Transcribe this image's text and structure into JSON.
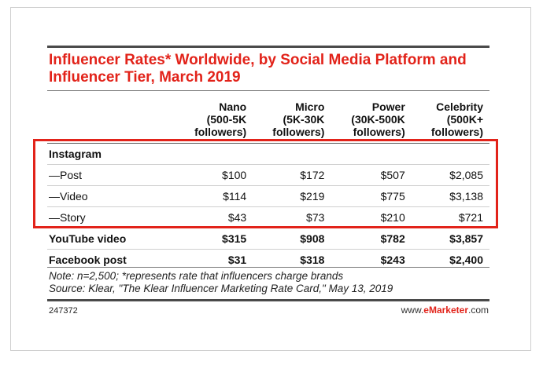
{
  "chart_data": {
    "type": "table",
    "title": "Influencer Rates* Worldwide, by Social Media Platform and Influencer Tier, March 2019",
    "columns": [
      {
        "name": "Nano",
        "sub1": "(500-5K",
        "sub2": "followers)"
      },
      {
        "name": "Micro",
        "sub1": "(5K-30K",
        "sub2": "followers)"
      },
      {
        "name": "Power",
        "sub1": "(30K-500K",
        "sub2": "followers)"
      },
      {
        "name": "Celebrity",
        "sub1": "(500K+",
        "sub2": "followers)"
      }
    ],
    "group_label": "Instagram",
    "rows": [
      {
        "label": "—Post",
        "values": [
          "$100",
          "$172",
          "$507",
          "$2,085"
        ]
      },
      {
        "label": "—Video",
        "values": [
          "$114",
          "$219",
          "$775",
          "$3,138"
        ]
      },
      {
        "label": "—Story",
        "values": [
          "$43",
          "$73",
          "$210",
          "$721"
        ]
      },
      {
        "label": "YouTube video",
        "values": [
          "$315",
          "$908",
          "$782",
          "$3,857"
        ]
      },
      {
        "label": "Facebook post",
        "values": [
          "$31",
          "$318",
          "$243",
          "$2,400"
        ]
      }
    ],
    "note": "Note: n=2,500; *represents rate that influencers charge brands",
    "source": "Source: Klear, \"The Klear Influencer Marketing Rate Card,\" May 13, 2019",
    "chart_id": "247372",
    "brand_prefix": "www.",
    "brand_name": "eMarketer",
    "brand_suffix": ".com",
    "highlight_color": "#e2231a",
    "title_color": "#e2231a"
  }
}
